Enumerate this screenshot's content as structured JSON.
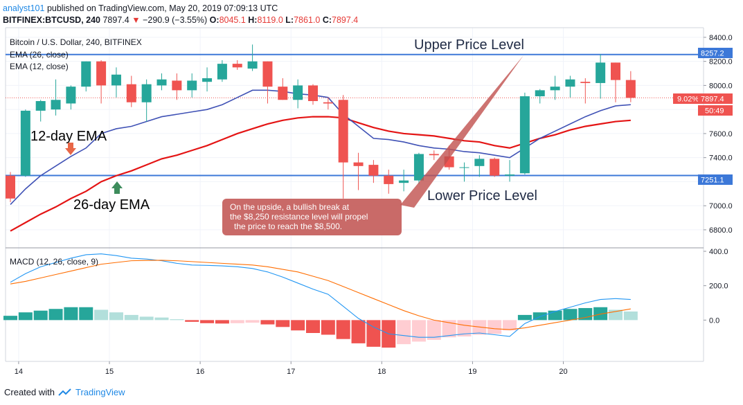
{
  "header": {
    "user": "analyst101",
    "published": "published on TradingView.com, May 20, 2019 07:09:13 UTC",
    "symbol": "BITFINEX:BTCUSD, 240",
    "last": "7897.4",
    "change": "−290.9 (−3.55%)",
    "o_label": "O:",
    "o": "8045.1",
    "h_label": "H:",
    "h": "8119.0",
    "l_label": "L:",
    "l": "7861.0",
    "c_label": "C:",
    "c": "7897.4"
  },
  "legend": {
    "title": "Bitcoin / U.S. Dollar, 240, BITFINEX",
    "ema26": "EMA (26, close)",
    "ema12": "EMA (12, close)",
    "macd": "MACD (12, 26, close, 9)"
  },
  "annotations": {
    "upper": "Upper Price Level",
    "lower": "Lower Price Level",
    "ema12": "12-day EMA",
    "ema26": "26-day EMA",
    "callout": [
      "On the upside, a bullish break at",
      "the $8,250 resistance level will propel",
      "the price to reach the $8,500."
    ]
  },
  "badges": {
    "upper": "8257.2",
    "lower": "7251.1",
    "pct": "9.02%",
    "price": "7897.4",
    "timer": "50:49"
  },
  "footer": {
    "created": "Created with",
    "brand": "TradingView"
  },
  "colors": {
    "up": "#26a69a",
    "down": "#ef5350",
    "ema12": "#3f51b5",
    "ema26": "#e41414",
    "hline": "#3c78d8",
    "macd": "#2196f3",
    "signal": "#ff6d00",
    "hist_up_strong": "#26a69a",
    "hist_up_weak": "#b2dfdb",
    "hist_dn_strong": "#ef5350",
    "hist_dn_weak": "#ffcdd2",
    "callout": "#c0504d"
  },
  "chart_data": {
    "type": "candlestick",
    "x_ticks": [
      "14",
      "15",
      "16",
      "17",
      "18",
      "19",
      "20"
    ],
    "x_tick_pos": [
      1,
      7,
      13,
      19,
      25,
      31,
      37
    ],
    "price_axis": {
      "ylim": [
        6650,
        8480
      ],
      "ticks": [
        6800.0,
        7000.0,
        7200.0,
        7400.0,
        7600.0,
        7800.0,
        8000.0,
        8200.0,
        8400.0
      ]
    },
    "macd_axis": {
      "ylim": [
        -240,
        420
      ],
      "ticks": [
        0.0,
        200.0,
        400.0
      ]
    },
    "horizontal_levels": [
      8257.2,
      7251.1
    ],
    "candles": [
      [
        7250,
        7280,
        7030,
        7060
      ],
      [
        7250,
        7800,
        7240,
        7790
      ],
      [
        7790,
        7880,
        7700,
        7870
      ],
      [
        7800,
        8050,
        7750,
        7880
      ],
      [
        7850,
        8000,
        7800,
        7990
      ],
      [
        7990,
        8200,
        7950,
        8200
      ],
      [
        8200,
        8210,
        7850,
        8000
      ],
      [
        8000,
        8150,
        7900,
        8090
      ],
      [
        8010,
        8080,
        7820,
        7860
      ],
      [
        7860,
        8050,
        7700,
        8010
      ],
      [
        8000,
        8100,
        7960,
        8050
      ],
      [
        8040,
        8100,
        7880,
        7960
      ],
      [
        7960,
        8100,
        7900,
        8040
      ],
      [
        8030,
        8150,
        7950,
        8060
      ],
      [
        8050,
        8210,
        8030,
        8180
      ],
      [
        8180,
        8210,
        8130,
        8150
      ],
      [
        8140,
        8340,
        8120,
        8200
      ],
      [
        8200,
        8200,
        7850,
        7990
      ],
      [
        7990,
        8060,
        7880,
        7880
      ],
      [
        7880,
        8050,
        7810,
        8000
      ],
      [
        8000,
        8010,
        7840,
        7870
      ],
      [
        7860,
        7900,
        7800,
        7850
      ],
      [
        7880,
        7920,
        7060,
        7360
      ],
      [
        7360,
        7440,
        7130,
        7330
      ],
      [
        7340,
        7380,
        7190,
        7250
      ],
      [
        7250,
        7300,
        7100,
        7180
      ],
      [
        7190,
        7300,
        7120,
        7210
      ],
      [
        7210,
        7440,
        7180,
        7430
      ],
      [
        7430,
        7460,
        7380,
        7420
      ],
      [
        7410,
        7500,
        7300,
        7320
      ],
      [
        7320,
        7360,
        7200,
        7320
      ],
      [
        7330,
        7420,
        7240,
        7390
      ],
      [
        7390,
        7400,
        7240,
        7250
      ],
      [
        7250,
        7380,
        7200,
        7260
      ],
      [
        7270,
        7940,
        7260,
        7910
      ],
      [
        7910,
        7970,
        7850,
        7960
      ],
      [
        7960,
        8080,
        7880,
        7990
      ],
      [
        7990,
        8080,
        7900,
        8050
      ],
      [
        8030,
        8060,
        7850,
        8020
      ],
      [
        8020,
        8260,
        7890,
        8190
      ],
      [
        8190,
        8190,
        7860,
        8045
      ],
      [
        8045,
        8119,
        7861,
        7897
      ]
    ],
    "ema12": [
      7010,
      7140,
      7250,
      7330,
      7410,
      7480,
      7600,
      7640,
      7660,
      7700,
      7740,
      7760,
      7780,
      7800,
      7840,
      7900,
      7960,
      7960,
      7950,
      7930,
      7920,
      7900,
      7760,
      7660,
      7560,
      7550,
      7530,
      7500,
      7480,
      7470,
      7450,
      7440,
      7420,
      7400,
      7480,
      7560,
      7620,
      7680,
      7740,
      7790,
      7830,
      7840
    ],
    "ema26": [
      6790,
      6860,
      6930,
      6990,
      7060,
      7120,
      7200,
      7250,
      7290,
      7340,
      7390,
      7420,
      7460,
      7500,
      7550,
      7600,
      7640,
      7680,
      7710,
      7730,
      7740,
      7740,
      7730,
      7690,
      7650,
      7620,
      7600,
      7590,
      7580,
      7560,
      7540,
      7530,
      7500,
      7480,
      7520,
      7560,
      7590,
      7630,
      7660,
      7680,
      7700,
      7710
    ],
    "macd": [
      220,
      270,
      310,
      335,
      360,
      380,
      385,
      375,
      360,
      355,
      345,
      330,
      320,
      318,
      315,
      310,
      300,
      280,
      250,
      215,
      180,
      150,
      80,
      10,
      -40,
      -80,
      -90,
      -100,
      -100,
      -90,
      -80,
      -75,
      -85,
      -95,
      -20,
      20,
      50,
      75,
      100,
      120,
      125,
      120
    ],
    "signal": [
      210,
      225,
      245,
      265,
      285,
      305,
      325,
      335,
      345,
      347,
      348,
      345,
      340,
      335,
      330,
      325,
      320,
      310,
      295,
      280,
      255,
      230,
      195,
      160,
      125,
      90,
      55,
      25,
      0,
      -15,
      -30,
      -40,
      -50,
      -55,
      -45,
      -30,
      -15,
      0,
      15,
      35,
      50,
      65
    ],
    "histogram": [
      25,
      45,
      55,
      65,
      75,
      75,
      60,
      45,
      30,
      20,
      15,
      5,
      -10,
      -18,
      -20,
      -18,
      -15,
      -25,
      -40,
      -60,
      -75,
      -85,
      -110,
      -135,
      -155,
      -160,
      -140,
      -125,
      -115,
      -100,
      -95,
      -85,
      -80,
      -60,
      30,
      45,
      55,
      65,
      70,
      75,
      60,
      50
    ]
  }
}
